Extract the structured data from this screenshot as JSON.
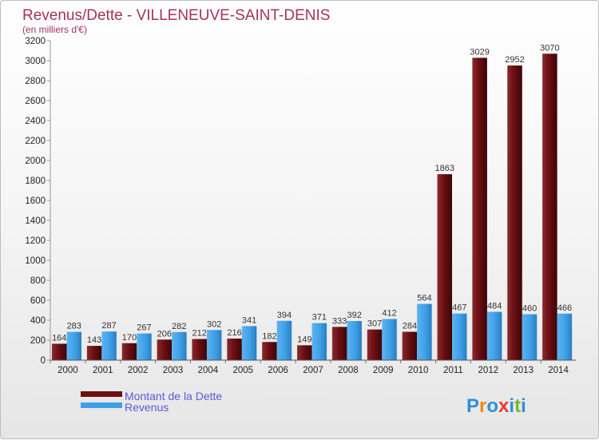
{
  "chart_data": {
    "type": "bar",
    "title": "Revenus/Dette - VILLENEUVE-SAINT-DENIS",
    "subtitle": "(en milliers d'€)",
    "categories": [
      "2000",
      "2001",
      "2002",
      "2003",
      "2004",
      "2005",
      "2006",
      "2007",
      "2008",
      "2009",
      "2010",
      "2011",
      "2012",
      "2013",
      "2014"
    ],
    "series": [
      {
        "name": "Montant de la Dette",
        "color": "#6b0f12",
        "values": [
          164,
          143,
          170,
          206,
          212,
          216,
          182,
          149,
          333,
          307,
          284,
          1863,
          3029,
          2952,
          3070
        ]
      },
      {
        "name": "Revenus",
        "color": "#3f9fe6",
        "values": [
          283,
          287,
          267,
          282,
          302,
          341,
          394,
          371,
          392,
          412,
          564,
          467,
          484,
          460,
          466
        ]
      }
    ],
    "ylim": [
      0,
      3200
    ],
    "yticks": [
      0,
      200,
      400,
      600,
      800,
      1000,
      1200,
      1400,
      1600,
      1800,
      2000,
      2200,
      2400,
      2600,
      2800,
      3000,
      3200
    ],
    "legend_position": "bottom-left",
    "grid": false
  },
  "logo": {
    "text": "Proxiti"
  }
}
